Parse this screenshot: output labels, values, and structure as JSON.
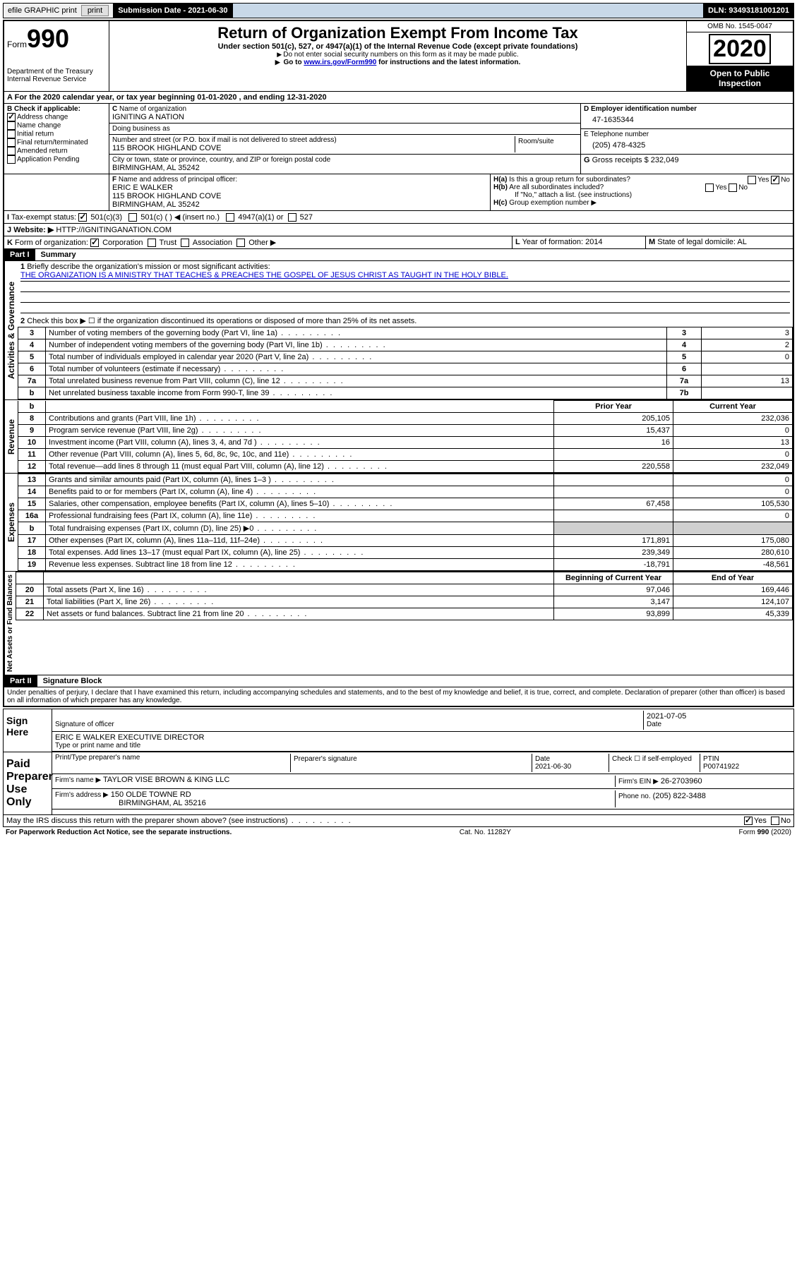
{
  "topbar": {
    "efile": "efile GRAPHIC print",
    "submission_label": "Submission Date - 2021-06-30",
    "dln": "DLN: 93493181001201"
  },
  "header": {
    "form_prefix": "Form",
    "form_num": "990",
    "dept": "Department of the Treasury",
    "irs": "Internal Revenue Service",
    "title": "Return of Organization Exempt From Income Tax",
    "sub": "Under section 501(c), 527, or 4947(a)(1) of the Internal Revenue Code (except private foundations)",
    "note1": "Do not enter social security numbers on this form as it may be made public.",
    "note2_pre": "Go to ",
    "note2_link": "www.irs.gov/Form990",
    "note2_post": " for instructions and the latest information.",
    "omb": "OMB No. 1545-0047",
    "year": "2020",
    "open": "Open to Public Inspection"
  },
  "period": {
    "line": "For the 2020 calendar year, or tax year beginning 01-01-2020    , and ending 12-31-2020"
  },
  "B": {
    "heading": "Check if applicable:",
    "items": [
      {
        "label": "Address change",
        "checked": true
      },
      {
        "label": "Name change",
        "checked": false
      },
      {
        "label": "Initial return",
        "checked": false
      },
      {
        "label": "Final return/terminated",
        "checked": false
      },
      {
        "label": "Amended return",
        "checked": false
      },
      {
        "label": "Application Pending",
        "checked": false
      }
    ]
  },
  "C": {
    "name_label": "Name of organization",
    "name": "IGNITING A NATION",
    "dba_label": "Doing business as",
    "street_label": "Number and street (or P.O. box if mail is not delivered to street address)",
    "room_label": "Room/suite",
    "street": "115 BROOK HIGHLAND COVE",
    "city_label": "City or town, state or province, country, and ZIP or foreign postal code",
    "city": "BIRMINGHAM, AL  35242"
  },
  "D": {
    "label": "Employer identification number",
    "value": "47-1635344"
  },
  "E": {
    "label": "Telephone number",
    "value": "(205) 478-4325"
  },
  "G": {
    "label": "Gross receipts $",
    "value": "232,049"
  },
  "F": {
    "label": "Name and address of principal officer:",
    "name": "ERIC E WALKER",
    "addr1": "115 BROOK HIGHLAND COVE",
    "addr2": "BIRMINGHAM, AL  35242"
  },
  "H": {
    "a": "Is this a group return for subordinates?",
    "b": "Are all subordinates included?",
    "note": "If \"No,\" attach a list. (see instructions)",
    "c": "Group exemption number ▶"
  },
  "I": {
    "label": "Tax-exempt status:",
    "opts": [
      "501(c)(3)",
      "501(c) (  ) ◀ (insert no.)",
      "4947(a)(1) or",
      "527"
    ]
  },
  "J": {
    "label": "Website: ▶",
    "value": "HTTP://IGNITINGANATION.COM"
  },
  "K": {
    "label": "Form of organization:",
    "opts": [
      "Corporation",
      "Trust",
      "Association",
      "Other ▶"
    ]
  },
  "L": {
    "label": "Year of formation:",
    "value": "2014"
  },
  "M": {
    "label": "State of legal domicile:",
    "value": "AL"
  },
  "part1": {
    "title": "Part I",
    "heading": "Summary",
    "line1_label": "Briefly describe the organization's mission or most significant activities:",
    "mission": "THE ORGANIZATION IS A MINISTRY THAT TEACHES & PREACHES THE GOSPEL OF JESUS CHRIST AS TAUGHT IN THE HOLY BIBLE.",
    "line2": "Check this box ▶ ☐  if the organization discontinued its operations or disposed of more than 25% of its net assets.",
    "governance_label": "Activities & Governance",
    "revenue_label": "Revenue",
    "expenses_label": "Expenses",
    "netassets_label": "Net Assets or Fund Balances",
    "gov_rows": [
      {
        "n": "3",
        "desc": "Number of voting members of the governing body (Part VI, line 1a)",
        "box": "3",
        "val": "3"
      },
      {
        "n": "4",
        "desc": "Number of independent voting members of the governing body (Part VI, line 1b)",
        "box": "4",
        "val": "2"
      },
      {
        "n": "5",
        "desc": "Total number of individuals employed in calendar year 2020 (Part V, line 2a)",
        "box": "5",
        "val": "0"
      },
      {
        "n": "6",
        "desc": "Total number of volunteers (estimate if necessary)",
        "box": "6",
        "val": ""
      },
      {
        "n": "7a",
        "desc": "Total unrelated business revenue from Part VIII, column (C), line 12",
        "box": "7a",
        "val": "13"
      },
      {
        "n": "b",
        "desc": "Net unrelated business taxable income from Form 990-T, line 39",
        "box": "7b",
        "val": ""
      }
    ],
    "col_headers": {
      "prior": "Prior Year",
      "current": "Current Year"
    },
    "rev_rows": [
      {
        "n": "8",
        "desc": "Contributions and grants (Part VIII, line 1h)",
        "prior": "205,105",
        "current": "232,036"
      },
      {
        "n": "9",
        "desc": "Program service revenue (Part VIII, line 2g)",
        "prior": "15,437",
        "current": "0"
      },
      {
        "n": "10",
        "desc": "Investment income (Part VIII, column (A), lines 3, 4, and 7d )",
        "prior": "16",
        "current": "13"
      },
      {
        "n": "11",
        "desc": "Other revenue (Part VIII, column (A), lines 5, 6d, 8c, 9c, 10c, and 11e)",
        "prior": "",
        "current": "0"
      },
      {
        "n": "12",
        "desc": "Total revenue—add lines 8 through 11 (must equal Part VIII, column (A), line 12)",
        "prior": "220,558",
        "current": "232,049"
      }
    ],
    "exp_rows": [
      {
        "n": "13",
        "desc": "Grants and similar amounts paid (Part IX, column (A), lines 1–3 )",
        "prior": "",
        "current": "0"
      },
      {
        "n": "14",
        "desc": "Benefits paid to or for members (Part IX, column (A), line 4)",
        "prior": "",
        "current": "0"
      },
      {
        "n": "15",
        "desc": "Salaries, other compensation, employee benefits (Part IX, column (A), lines 5–10)",
        "prior": "67,458",
        "current": "105,530"
      },
      {
        "n": "16a",
        "desc": "Professional fundraising fees (Part IX, column (A), line 11e)",
        "prior": "",
        "current": "0"
      },
      {
        "n": "b",
        "desc": "Total fundraising expenses (Part IX, column (D), line 25) ▶0",
        "prior": "GRAY",
        "current": "GRAY"
      },
      {
        "n": "17",
        "desc": "Other expenses (Part IX, column (A), lines 11a–11d, 11f–24e)",
        "prior": "171,891",
        "current": "175,080"
      },
      {
        "n": "18",
        "desc": "Total expenses. Add lines 13–17 (must equal Part IX, column (A), line 25)",
        "prior": "239,349",
        "current": "280,610"
      },
      {
        "n": "19",
        "desc": "Revenue less expenses. Subtract line 18 from line 12",
        "prior": "-18,791",
        "current": "-48,561"
      }
    ],
    "net_headers": {
      "begin": "Beginning of Current Year",
      "end": "End of Year"
    },
    "net_rows": [
      {
        "n": "20",
        "desc": "Total assets (Part X, line 16)",
        "prior": "97,046",
        "current": "169,446"
      },
      {
        "n": "21",
        "desc": "Total liabilities (Part X, line 26)",
        "prior": "3,147",
        "current": "124,107"
      },
      {
        "n": "22",
        "desc": "Net assets or fund balances. Subtract line 21 from line 20",
        "prior": "93,899",
        "current": "45,339"
      }
    ]
  },
  "part2": {
    "title": "Part II",
    "heading": "Signature Block",
    "penalty": "Under penalties of perjury, I declare that I have examined this return, including accompanying schedules and statements, and to the best of my knowledge and belief, it is true, correct, and complete. Declaration of preparer (other than officer) is based on all information of which preparer has any knowledge.",
    "sign_here": "Sign Here",
    "sig_officer": "Signature of officer",
    "sig_date": "2021-07-05",
    "date_label": "Date",
    "officer_name": "ERIC E WALKER  EXECUTIVE DIRECTOR",
    "type_name": "Type or print name and title",
    "paid": "Paid Preparer Use Only",
    "prep_name_label": "Print/Type preparer's name",
    "prep_sig_label": "Preparer's signature",
    "prep_date_label": "Date",
    "prep_date": "2021-06-30",
    "check_self": "Check ☐ if self-employed",
    "ptin_label": "PTIN",
    "ptin": "P00741922",
    "firm_name_label": "Firm's name    ▶",
    "firm_name": "TAYLOR VISE BROWN & KING LLC",
    "firm_ein_label": "Firm's EIN ▶",
    "firm_ein": "26-2703960",
    "firm_addr_label": "Firm's address ▶",
    "firm_addr1": "150 OLDE TOWNE RD",
    "firm_addr2": "BIRMINGHAM, AL  35216",
    "phone_label": "Phone no.",
    "phone": "(205) 822-3488",
    "discuss": "May the IRS discuss this return with the preparer shown above? (see instructions)"
  },
  "footer": {
    "paperwork": "For Paperwork Reduction Act Notice, see the separate instructions.",
    "cat": "Cat. No. 11282Y",
    "form": "Form 990 (2020)"
  },
  "colors": {
    "link": "#0000cc",
    "black": "#000000",
    "gray": "#d0d0d0"
  }
}
